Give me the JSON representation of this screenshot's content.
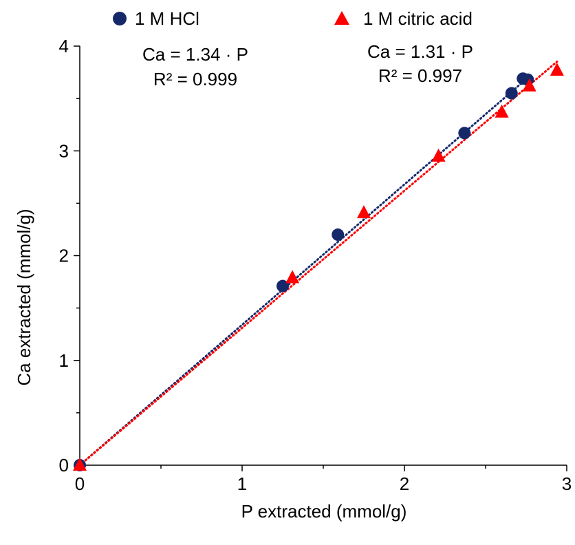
{
  "chart_data": {
    "type": "scatter",
    "xlabel": "P extracted (mmol/g)",
    "ylabel": "Ca extracted (mmol/g)",
    "xlim": [
      0,
      3
    ],
    "ylim": [
      0,
      4
    ],
    "x_major_ticks": [
      0,
      1,
      2,
      3
    ],
    "x_minor_ticks": [
      0.5,
      1.5,
      2.5
    ],
    "y_major_ticks": [
      0,
      1,
      2,
      3,
      4
    ],
    "y_minor_ticks": [
      0.5,
      1.5,
      2.5,
      3.5
    ],
    "x_tick_labels": [
      "0",
      "1",
      "2",
      "3"
    ],
    "y_tick_labels": [
      "0",
      "1",
      "2",
      "3",
      "4"
    ],
    "grid": false,
    "legend_position": "top",
    "series": [
      {
        "name": "1 M HCl",
        "marker": "circle",
        "color": "#15286a",
        "points": [
          {
            "x": 0.0,
            "y": 0.0
          },
          {
            "x": 1.25,
            "y": 1.71
          },
          {
            "x": 1.59,
            "y": 2.2
          },
          {
            "x": 2.37,
            "y": 3.17
          },
          {
            "x": 2.66,
            "y": 3.55
          },
          {
            "x": 2.73,
            "y": 3.69
          },
          {
            "x": 2.76,
            "y": 3.68
          }
        ],
        "trendline": {
          "slope": 1.34,
          "style": "dotted",
          "x_range": [
            0,
            2.76
          ],
          "equation": "Ca = 1.34 · P",
          "r2": "R² = 0.999"
        }
      },
      {
        "name": "1 M citric acid",
        "marker": "triangle",
        "color": "#ff0000",
        "points": [
          {
            "x": 0.0,
            "y": 0.0
          },
          {
            "x": 1.31,
            "y": 1.79
          },
          {
            "x": 1.75,
            "y": 2.41
          },
          {
            "x": 2.21,
            "y": 2.95
          },
          {
            "x": 2.6,
            "y": 3.37
          },
          {
            "x": 2.77,
            "y": 3.62
          },
          {
            "x": 2.94,
            "y": 3.77
          }
        ],
        "trendline": {
          "slope": 1.31,
          "style": "dotted",
          "x_range": [
            0,
            2.94
          ],
          "equation": "Ca = 1.31 · P",
          "r2": "R² = 0.997"
        }
      }
    ]
  }
}
